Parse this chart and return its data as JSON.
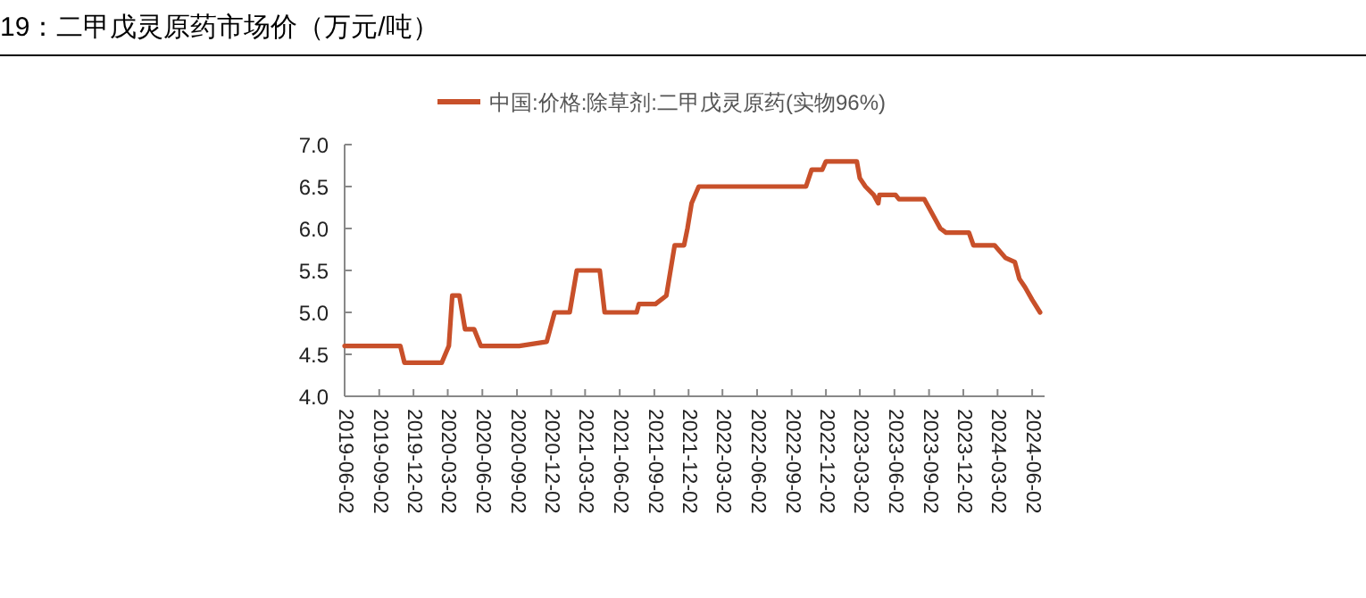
{
  "chart_data": {
    "type": "line",
    "title": "19：二甲戊灵原药市场价（万元/吨）",
    "x": [
      "2019-06-02",
      "2019-10-28",
      "2019-11-08",
      "2020-02-15",
      "2020-03-05",
      "2020-03-14",
      "2020-04-02",
      "2020-04-17",
      "2020-05-11",
      "2020-05-20",
      "2020-05-29",
      "2020-09-08",
      "2020-11-20",
      "2020-11-29",
      "2020-12-11",
      "2021-01-20",
      "2021-02-08",
      "2021-04-10",
      "2021-04-23",
      "2021-07-17",
      "2021-07-23",
      "2021-09-05",
      "2021-10-04",
      "2021-10-26",
      "2021-11-20",
      "2021-11-29",
      "2021-12-10",
      "2021-12-29",
      "2022-10-10",
      "2022-10-25",
      "2022-11-22",
      "2022-12-02",
      "2023-02-22",
      "2023-03-02",
      "2023-03-17",
      "2023-04-08",
      "2023-04-20",
      "2023-04-23",
      "2023-06-05",
      "2023-06-14",
      "2023-08-20",
      "2023-10-02",
      "2023-10-17",
      "2023-12-17",
      "2023-12-29",
      "2024-02-23",
      "2024-03-23",
      "2024-04-17",
      "2024-04-29",
      "2024-05-14",
      "2024-06-02",
      "2024-06-23"
    ],
    "series": [
      {
        "name": "中国:价格:除草剂:二甲戊灵原药(实物96%)",
        "color": "#c8502a",
        "values": [
          4.6,
          4.6,
          4.4,
          4.4,
          4.6,
          5.2,
          5.2,
          4.8,
          4.8,
          4.7,
          4.6,
          4.6,
          4.65,
          4.8,
          5.0,
          5.0,
          5.5,
          5.5,
          5.0,
          5.0,
          5.1,
          5.1,
          5.2,
          5.8,
          5.8,
          6.0,
          6.3,
          6.5,
          6.5,
          6.7,
          6.7,
          6.8,
          6.8,
          6.6,
          6.5,
          6.4,
          6.3,
          6.4,
          6.4,
          6.35,
          6.35,
          6.0,
          5.95,
          5.95,
          5.8,
          5.8,
          5.65,
          5.6,
          5.4,
          5.3,
          5.15,
          5.0
        ]
      }
    ],
    "xlim": [
      "2019-06-02",
      "2024-07-05"
    ],
    "xticks": [
      "2019-06-02",
      "2019-09-02",
      "2019-12-02",
      "2020-03-02",
      "2020-06-02",
      "2020-09-02",
      "2020-12-02",
      "2021-03-02",
      "2021-06-02",
      "2021-09-02",
      "2021-12-02",
      "2022-03-02",
      "2022-06-02",
      "2022-09-02",
      "2022-12-02",
      "2023-03-02",
      "2023-06-02",
      "2023-09-02",
      "2023-12-02",
      "2024-03-02",
      "2024-06-02"
    ],
    "ylim": [
      4.0,
      7.0
    ],
    "yticks": [
      {
        "value": 4,
        "label": "4.0"
      },
      4.5,
      {
        "value": 5,
        "label": "5.0"
      },
      5.5,
      {
        "value": 6,
        "label": "6.0"
      },
      6.5,
      {
        "value": 7,
        "label": "7.0"
      }
    ],
    "legend": "top",
    "grid": false,
    "marker": "none",
    "line_style": "solid"
  }
}
